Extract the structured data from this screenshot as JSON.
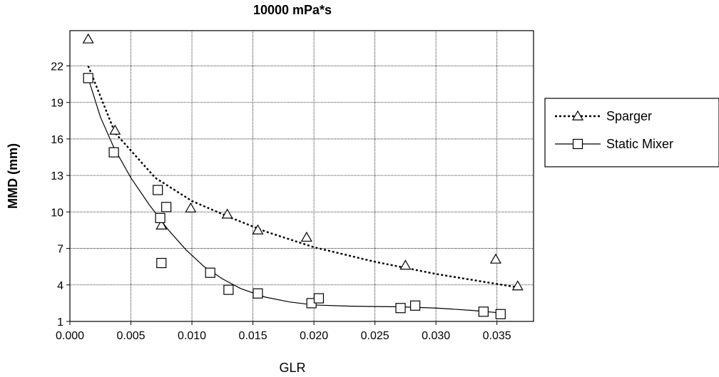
{
  "chart_data": {
    "type": "scatter",
    "title": "10000 mPa*s",
    "xlabel": "GLR",
    "ylabel": "MMD (mm)",
    "xlim": [
      0.0,
      0.038
    ],
    "ylim": [
      1,
      25
    ],
    "x_ticks": [
      "0.000",
      "0.005",
      "0.010",
      "0.015",
      "0.020",
      "0.025",
      "0.030",
      "0.035"
    ],
    "y_ticks": [
      "1",
      "4",
      "7",
      "10",
      "13",
      "16",
      "19",
      "22"
    ],
    "grid": true,
    "legend_position": "right",
    "series": [
      {
        "name": "Sparger",
        "marker": "triangle",
        "line_style": "dotted",
        "color": "#000000",
        "points": [
          {
            "x": 0.0015,
            "y": 24.2
          },
          {
            "x": 0.0037,
            "y": 16.7
          },
          {
            "x": 0.0075,
            "y": 8.9
          },
          {
            "x": 0.0099,
            "y": 10.3
          },
          {
            "x": 0.0129,
            "y": 9.8
          },
          {
            "x": 0.0154,
            "y": 8.5
          },
          {
            "x": 0.0194,
            "y": 7.9
          },
          {
            "x": 0.0275,
            "y": 5.6
          },
          {
            "x": 0.0349,
            "y": 6.1
          },
          {
            "x": 0.0367,
            "y": 3.9
          }
        ],
        "trend": [
          {
            "x": 0.0015,
            "y": 22.0
          },
          {
            "x": 0.0037,
            "y": 16.5
          },
          {
            "x": 0.007,
            "y": 12.8
          },
          {
            "x": 0.01,
            "y": 10.9
          },
          {
            "x": 0.013,
            "y": 9.6
          },
          {
            "x": 0.016,
            "y": 8.4
          },
          {
            "x": 0.02,
            "y": 7.1
          },
          {
            "x": 0.025,
            "y": 5.9
          },
          {
            "x": 0.03,
            "y": 4.9
          },
          {
            "x": 0.0367,
            "y": 3.8
          }
        ]
      },
      {
        "name": "Static Mixer",
        "marker": "square",
        "line_style": "solid",
        "color": "#000000",
        "points": [
          {
            "x": 0.0015,
            "y": 21.0
          },
          {
            "x": 0.0036,
            "y": 14.9
          },
          {
            "x": 0.0072,
            "y": 11.8
          },
          {
            "x": 0.0074,
            "y": 9.5
          },
          {
            "x": 0.0079,
            "y": 10.4
          },
          {
            "x": 0.0075,
            "y": 5.8
          },
          {
            "x": 0.0115,
            "y": 5.0
          },
          {
            "x": 0.013,
            "y": 3.6
          },
          {
            "x": 0.0154,
            "y": 3.3
          },
          {
            "x": 0.0198,
            "y": 2.5
          },
          {
            "x": 0.0204,
            "y": 2.9
          },
          {
            "x": 0.0271,
            "y": 2.1
          },
          {
            "x": 0.0283,
            "y": 2.3
          },
          {
            "x": 0.0339,
            "y": 1.8
          },
          {
            "x": 0.0353,
            "y": 1.6
          }
        ],
        "trend": [
          {
            "x": 0.0015,
            "y": 21.0
          },
          {
            "x": 0.0025,
            "y": 17.8
          },
          {
            "x": 0.0036,
            "y": 15.3
          },
          {
            "x": 0.005,
            "y": 12.8
          },
          {
            "x": 0.0065,
            "y": 10.6
          },
          {
            "x": 0.008,
            "y": 8.6
          },
          {
            "x": 0.0095,
            "y": 6.9
          },
          {
            "x": 0.011,
            "y": 5.5
          },
          {
            "x": 0.0125,
            "y": 4.5
          },
          {
            "x": 0.014,
            "y": 3.7
          },
          {
            "x": 0.016,
            "y": 3.0
          },
          {
            "x": 0.018,
            "y": 2.6
          },
          {
            "x": 0.02,
            "y": 2.35
          },
          {
            "x": 0.023,
            "y": 2.25
          },
          {
            "x": 0.027,
            "y": 2.2
          },
          {
            "x": 0.03,
            "y": 2.1
          },
          {
            "x": 0.033,
            "y": 1.9
          },
          {
            "x": 0.0353,
            "y": 1.7
          }
        ]
      }
    ]
  }
}
